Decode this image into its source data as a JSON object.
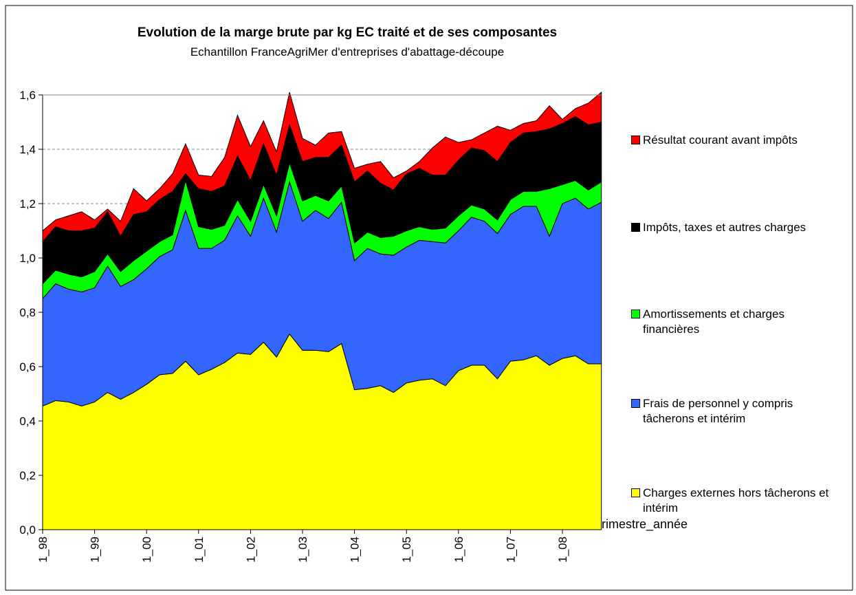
{
  "chart_data": {
    "type": "stacked_area",
    "title": "Evolution de la marge brute par kg EC traité et de ses composantes",
    "subtitle": "Echantillon FranceAgriMer d'entreprises d'abattage-découpe",
    "x_label": "trimestre_année",
    "categories": [
      "1_98",
      null,
      null,
      null,
      "1_99",
      null,
      null,
      null,
      "1_00",
      null,
      null,
      null,
      "1_01",
      null,
      null,
      null,
      "1_02",
      null,
      null,
      null,
      "1_03",
      null,
      null,
      null,
      "1_04",
      null,
      null,
      null,
      "1_05",
      null,
      null,
      null,
      "1_06",
      null,
      null,
      null,
      "1_07",
      null,
      null,
      null,
      "1_08",
      null,
      null,
      null
    ],
    "ylim": [
      0,
      1.6
    ],
    "yticks": [
      {
        "value": 0,
        "label": "0,0"
      },
      {
        "value": 0.2,
        "label": "0,2"
      },
      {
        "value": 0.4,
        "label": "0,4"
      },
      {
        "value": 0.6,
        "label": "0,6"
      },
      {
        "value": 0.8,
        "label": "0,8"
      },
      {
        "value": 1.0,
        "label": "1,0"
      },
      {
        "value": 1.2,
        "label": "1,2"
      },
      {
        "value": 1.4,
        "label": "1,4"
      },
      {
        "value": 1.6,
        "label": "1,6"
      }
    ],
    "grid": true,
    "legend": "right",
    "series": [
      {
        "name": "Charges externes hors tâcherons et intérim",
        "color": "#ffff00",
        "values": [
          0.455,
          0.475,
          0.47,
          0.455,
          0.47,
          0.505,
          0.48,
          0.505,
          0.535,
          0.57,
          0.575,
          0.62,
          0.57,
          0.59,
          0.615,
          0.65,
          0.645,
          0.69,
          0.635,
          0.72,
          0.66,
          0.66,
          0.655,
          0.685,
          0.515,
          0.52,
          0.53,
          0.505,
          0.54,
          0.55,
          0.555,
          0.53,
          0.585,
          0.605,
          0.605,
          0.555,
          0.62,
          0.625,
          0.64,
          0.605,
          0.63,
          0.64,
          0.61,
          0.61
        ]
      },
      {
        "name": "Frais de personnel y compris tâcherons et intérim",
        "color": "#3366ff",
        "values": [
          0.395,
          0.43,
          0.415,
          0.42,
          0.42,
          0.465,
          0.415,
          0.415,
          0.425,
          0.435,
          0.455,
          0.555,
          0.465,
          0.445,
          0.45,
          0.505,
          0.435,
          0.53,
          0.46,
          0.56,
          0.475,
          0.515,
          0.49,
          0.52,
          0.475,
          0.515,
          0.485,
          0.505,
          0.5,
          0.515,
          0.505,
          0.525,
          0.515,
          0.545,
          0.53,
          0.535,
          0.54,
          0.565,
          0.55,
          0.475,
          0.57,
          0.58,
          0.57,
          0.595
        ]
      },
      {
        "name": "Amortissements et charges financières",
        "color": "#00ff00",
        "values": [
          0.055,
          0.05,
          0.055,
          0.055,
          0.06,
          0.045,
          0.055,
          0.07,
          0.065,
          0.055,
          0.055,
          0.11,
          0.08,
          0.07,
          0.055,
          0.06,
          0.055,
          0.05,
          0.06,
          0.07,
          0.075,
          0.055,
          0.065,
          0.06,
          0.065,
          0.06,
          0.06,
          0.07,
          0.06,
          0.05,
          0.045,
          0.055,
          0.055,
          0.045,
          0.045,
          0.05,
          0.055,
          0.055,
          0.055,
          0.175,
          0.07,
          0.065,
          0.07,
          0.075
        ]
      },
      {
        "name": "Impôts, taxes et autres charges",
        "color": "#000000",
        "values": [
          0.155,
          0.16,
          0.16,
          0.17,
          0.16,
          0.155,
          0.13,
          0.17,
          0.145,
          0.155,
          0.16,
          0.025,
          0.14,
          0.14,
          0.145,
          0.16,
          0.15,
          0.15,
          0.15,
          0.14,
          0.145,
          0.14,
          0.16,
          0.15,
          0.225,
          0.225,
          0.2,
          0.17,
          0.21,
          0.215,
          0.2,
          0.195,
          0.205,
          0.21,
          0.215,
          0.215,
          0.21,
          0.215,
          0.22,
          0.22,
          0.225,
          0.235,
          0.24,
          0.22
        ]
      },
      {
        "name": "Résultat courant avant impôts",
        "color": "#ff0000",
        "values": [
          0.04,
          0.025,
          0.055,
          0.07,
          0.03,
          0.01,
          0.055,
          0.095,
          0.04,
          0.04,
          0.065,
          0.11,
          0.05,
          0.055,
          0.105,
          0.15,
          0.125,
          0.085,
          0.085,
          0.12,
          0.085,
          0.045,
          0.09,
          0.05,
          0.05,
          0.025,
          0.08,
          0.045,
          0.01,
          0.025,
          0.1,
          0.14,
          0.065,
          0.03,
          0.065,
          0.13,
          0.045,
          0.035,
          0.04,
          0.085,
          0.015,
          0.03,
          0.08,
          0.11
        ]
      }
    ]
  }
}
